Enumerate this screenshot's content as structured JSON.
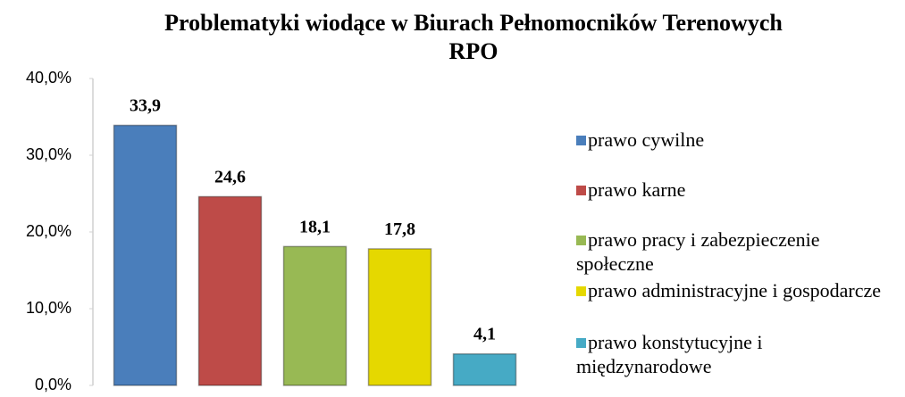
{
  "chart_data": {
    "type": "bar",
    "title": "Problematyki wiodące w Biurach Pełnomocników Terenowych RPO",
    "series": [
      {
        "name": "prawo cywilne",
        "color": "#4a7ebb",
        "values": [
          33.9
        ],
        "value_labels": [
          "33,9"
        ]
      },
      {
        "name": "prawo karne",
        "color": "#be4b48",
        "values": [
          24.6
        ],
        "value_labels": [
          "24,6"
        ]
      },
      {
        "name": "prawo pracy i zabezpieczenie społeczne",
        "color": "#98b954",
        "values": [
          18.1
        ],
        "value_labels": [
          "18,1"
        ]
      },
      {
        "name": "prawo administracyjne i gospodarcze",
        "color": "#e5d800",
        "values": [
          17.8
        ],
        "value_labels": [
          "17,8"
        ]
      },
      {
        "name": "prawo konstytucyjne i międzynarodowe",
        "color": "#46aac5",
        "values": [
          4.1
        ],
        "value_labels": [
          "4,1"
        ]
      }
    ],
    "ylim": [
      0,
      40
    ],
    "yticks": [
      {
        "value": 0,
        "label": "0,0%"
      },
      {
        "value": 10,
        "label": "10,0%"
      },
      {
        "value": 20,
        "label": "20,0%"
      },
      {
        "value": 30,
        "label": "30,0%"
      },
      {
        "value": 40,
        "label": "40,0%"
      }
    ],
    "grid": false,
    "legend": "right"
  }
}
